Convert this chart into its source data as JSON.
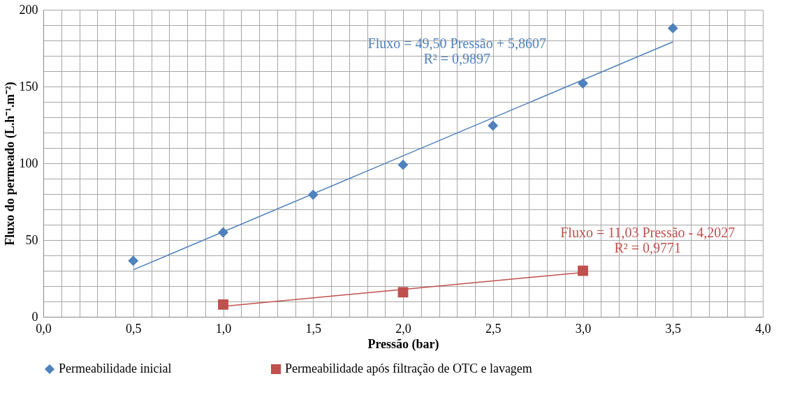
{
  "chart_data": {
    "type": "scatter",
    "xlabel": "Pressão (bar)",
    "ylabel": "Fluxo do permeado (L.h⁻¹.m⁻²)",
    "series": [
      {
        "name": "Permeabilidade inicial",
        "color": "#4f81bd",
        "marker": "diamond",
        "x": [
          0.5,
          1.0,
          1.5,
          2.0,
          2.5,
          3.0,
          3.5
        ],
        "values": [
          36.5,
          55,
          79.5,
          99,
          124.5,
          152,
          188
        ]
      },
      {
        "name": "Permeabilidade após filtração de OTC e lavagem",
        "color": "#c0504d",
        "marker": "square",
        "x": [
          1.0,
          2.0,
          3.0
        ],
        "values": [
          8,
          16,
          30
        ]
      },
      {
        "type": "line",
        "color": "#4f81bd",
        "x": [
          0.5,
          3.5
        ],
        "values": [
          30.6,
          179.1
        ]
      },
      {
        "type": "line",
        "color": "#c0504d",
        "x": [
          1.0,
          3.0
        ],
        "values": [
          6.8,
          28.9
        ]
      }
    ],
    "annotations": [
      "Fluxo = 49,50 Pressão + 5,8607\nR² = 0,9897",
      "Fluxo = 11,03 Pressão - 4,2027\nR² = 0,9771"
    ],
    "xlim": [
      0,
      4
    ],
    "ylim": [
      0,
      200
    ],
    "xticks": [
      {
        "value": 0,
        "label": "0,0"
      },
      {
        "value": 0.1,
        "label": null
      },
      {
        "value": 0.2,
        "label": null
      },
      {
        "value": 0.3,
        "label": null
      },
      {
        "value": 0.4,
        "label": null
      },
      {
        "value": 0.5,
        "label": "0,5"
      },
      {
        "value": 0.6,
        "label": null
      },
      {
        "value": 0.7,
        "label": null
      },
      {
        "value": 0.8,
        "label": null
      },
      {
        "value": 0.9,
        "label": null
      },
      {
        "value": 1.0,
        "label": "1,0"
      },
      {
        "value": 1.1,
        "label": null
      },
      {
        "value": 1.2,
        "label": null
      },
      {
        "value": 1.3,
        "label": null
      },
      {
        "value": 1.4,
        "label": null
      },
      {
        "value": 1.5,
        "label": "1,5"
      },
      {
        "value": 1.6,
        "label": null
      },
      {
        "value": 1.7,
        "label": null
      },
      {
        "value": 1.8,
        "label": null
      },
      {
        "value": 1.9,
        "label": null
      },
      {
        "value": 2.0,
        "label": "2,0"
      },
      {
        "value": 2.1,
        "label": null
      },
      {
        "value": 2.2,
        "label": null
      },
      {
        "value": 2.3,
        "label": null
      },
      {
        "value": 2.4,
        "label": null
      },
      {
        "value": 2.5,
        "label": "2,5"
      },
      {
        "value": 2.6,
        "label": null
      },
      {
        "value": 2.7,
        "label": null
      },
      {
        "value": 2.8,
        "label": null
      },
      {
        "value": 2.9,
        "label": null
      },
      {
        "value": 3.0,
        "label": "3,0"
      },
      {
        "value": 3.1,
        "label": null
      },
      {
        "value": 3.2,
        "label": null
      },
      {
        "value": 3.3,
        "label": null
      },
      {
        "value": 3.4,
        "label": null
      },
      {
        "value": 3.5,
        "label": "3,5"
      },
      {
        "value": 3.6,
        "label": null
      },
      {
        "value": 3.7,
        "label": null
      },
      {
        "value": 3.8,
        "label": null
      },
      {
        "value": 3.9,
        "label": null
      },
      {
        "value": 4.0,
        "label": "4,0"
      }
    ],
    "yticks": [
      0,
      {
        "value": 10,
        "label": null
      },
      {
        "value": 20,
        "label": null
      },
      {
        "value": 30,
        "label": null
      },
      {
        "value": 40,
        "label": null
      },
      50,
      {
        "value": 60,
        "label": null
      },
      {
        "value": 70,
        "label": null
      },
      {
        "value": 80,
        "label": null
      },
      {
        "value": 90,
        "label": null
      },
      100,
      {
        "value": 110,
        "label": null
      },
      {
        "value": 120,
        "label": null
      },
      {
        "value": 130,
        "label": null
      },
      {
        "value": 140,
        "label": null
      },
      150,
      {
        "value": 160,
        "label": null
      },
      {
        "value": 170,
        "label": null
      },
      {
        "value": 180,
        "label": null
      },
      {
        "value": 190,
        "label": null
      },
      200
    ],
    "grid": true,
    "legend": "bottom"
  }
}
